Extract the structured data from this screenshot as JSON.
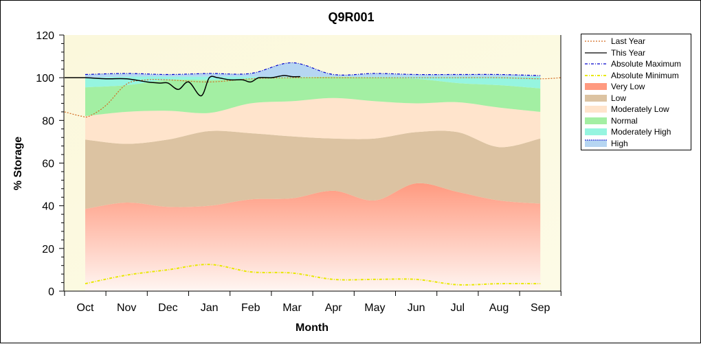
{
  "chart_data": {
    "type": "area",
    "title": "Q9R001",
    "xlabel": "Month",
    "ylabel": "% Storage",
    "categories": [
      "Oct",
      "Nov",
      "Dec",
      "Jan",
      "Feb",
      "Mar",
      "Apr",
      "May",
      "Jun",
      "Jul",
      "Aug",
      "Sep"
    ],
    "ylim": [
      0,
      120
    ],
    "yticks": [
      0,
      20,
      40,
      60,
      80,
      100,
      120
    ],
    "grid": false,
    "legend_position": "right",
    "bands": [
      {
        "name": "Very Low",
        "color": "#ff9a80",
        "lower": [
          0,
          0,
          0,
          0,
          0,
          0,
          0,
          0,
          0,
          0,
          0,
          0
        ],
        "upper": [
          38.5,
          41.5,
          39.5,
          40,
          43,
          43.5,
          47,
          42.5,
          50.5,
          46.5,
          42.5,
          41
        ]
      },
      {
        "name": "Low",
        "color": "#dcc3a2",
        "lower": [
          38.5,
          41.5,
          39.5,
          40,
          43,
          43.5,
          47,
          42.5,
          50.5,
          46.5,
          42.5,
          41
        ],
        "upper": [
          71,
          69,
          71,
          75,
          74,
          72.5,
          71.5,
          71.5,
          74.5,
          74.5,
          67.5,
          71.5
        ]
      },
      {
        "name": "Moderately Low",
        "color": "#ffe4cc",
        "lower": [
          71,
          69,
          71,
          75,
          74,
          72.5,
          71.5,
          71.5,
          74.5,
          74.5,
          67.5,
          71.5
        ],
        "upper": [
          82,
          84,
          84.5,
          83.5,
          88,
          89,
          90.5,
          89,
          88,
          88.5,
          86,
          84
        ]
      },
      {
        "name": "Normal",
        "color": "#a3efa3",
        "lower": [
          82,
          84,
          84.5,
          83.5,
          88,
          89,
          90.5,
          89,
          88,
          88.5,
          86,
          84
        ],
        "upper": [
          95.5,
          96.5,
          99,
          99,
          99.5,
          100,
          100.5,
          100,
          99.5,
          97.5,
          96.5,
          95
        ]
      },
      {
        "name": "Moderately High",
        "color": "#96f5e0",
        "lower": [
          95.5,
          96.5,
          99,
          99,
          99.5,
          100,
          100.5,
          100,
          99.5,
          97.5,
          96.5,
          95
        ],
        "upper": [
          100,
          100.5,
          100.5,
          100.5,
          100.5,
          100.5,
          100.5,
          100.5,
          100.5,
          100.5,
          100.5,
          100.5
        ]
      },
      {
        "name": "High",
        "color": "#b6d6f2",
        "lower": [
          100,
          100.5,
          100.5,
          100.5,
          100.5,
          100.5,
          100.5,
          100.5,
          100.5,
          100.5,
          100.5,
          100.5
        ],
        "upper": [
          101.5,
          102,
          101.5,
          102,
          102,
          107,
          101.5,
          102,
          101.5,
          101.5,
          101.5,
          101
        ]
      }
    ],
    "series": [
      {
        "name": "Last Year",
        "color": "#d2691e",
        "style": "dotted",
        "x": [
          -0.5,
          -0.1,
          0.1,
          0.5,
          1.0,
          1.5,
          2.0,
          3.0,
          4.0,
          5.0,
          6.0,
          7.0,
          8.0,
          9.0,
          10.0,
          11.0,
          11.5
        ],
        "y": [
          84,
          82,
          82,
          87,
          97,
          99,
          99,
          98,
          99.5,
          100,
          100,
          100,
          100,
          100,
          100,
          99.5,
          100
        ]
      },
      {
        "name": "This Year",
        "color": "#000000",
        "style": "solid",
        "x": [
          -0.5,
          0,
          0.5,
          1,
          1.5,
          1.8,
          2.0,
          2.25,
          2.5,
          2.8,
          3.0,
          3.2,
          3.5,
          3.8,
          4.0,
          4.2,
          4.5,
          4.8,
          5.0,
          5.2
        ],
        "y": [
          100,
          100,
          99.5,
          99.5,
          98,
          97.5,
          97.5,
          94.5,
          98,
          91.5,
          100,
          100,
          99,
          99,
          98,
          100,
          100,
          101,
          100.5,
          100.5
        ]
      },
      {
        "name": "Absolute Maximum",
        "color": "#0000cc",
        "style": "dashdot",
        "x": [
          0,
          1,
          2,
          3,
          4,
          5,
          6,
          7,
          8,
          9,
          10,
          11
        ],
        "y": [
          101.5,
          102,
          101.5,
          102,
          102,
          107,
          101.5,
          102,
          101.5,
          101.5,
          101.5,
          101
        ]
      },
      {
        "name": "Absolute Minimum",
        "color": "#e8e800",
        "style": "dashdot",
        "x": [
          0,
          1,
          2,
          3,
          4,
          5,
          6,
          7,
          8,
          9,
          10,
          11
        ],
        "y": [
          3.5,
          7.5,
          10,
          12.5,
          9,
          8.5,
          5.5,
          5.5,
          5.5,
          3,
          3.5,
          3.5
        ]
      }
    ],
    "legend": [
      "Last Year",
      "This Year",
      "Absolute Maximum",
      "Absolute Minimum",
      "Very Low",
      "Low",
      "Moderately Low",
      "Normal",
      "Moderately High",
      "High"
    ]
  }
}
